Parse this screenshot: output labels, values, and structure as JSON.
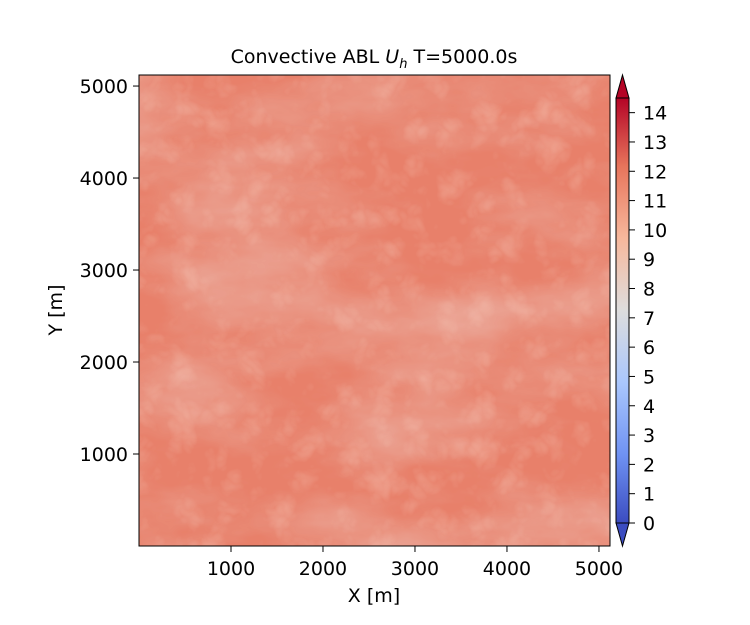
{
  "chart_data": {
    "type": "heatmap",
    "title_prefix": "Convective ABL ",
    "title_var": "U",
    "title_sub": "h",
    "title_suffix": " T=5000.0s",
    "xlabel": "X [m]",
    "ylabel": "Y [m]",
    "xlim": [
      0,
      5120
    ],
    "ylim": [
      0,
      5120
    ],
    "xticks": [
      1000,
      2000,
      3000,
      4000,
      5000
    ],
    "yticks": [
      1000,
      2000,
      3000,
      4000,
      5000
    ],
    "colorbar": {
      "colormap": "coolwarm",
      "range": [
        0,
        14.5
      ],
      "ticks": [
        0,
        1,
        2,
        3,
        4,
        5,
        6,
        7,
        8,
        9,
        10,
        11,
        12,
        13,
        14
      ],
      "extend": "both"
    },
    "field_range": [
      9,
      13.5
    ],
    "colormap_stops": [
      "#3b4cc0",
      "#6f92f3",
      "#aac7fd",
      "#dddddd",
      "#f7b89c",
      "#e7745b",
      "#b40426"
    ]
  }
}
